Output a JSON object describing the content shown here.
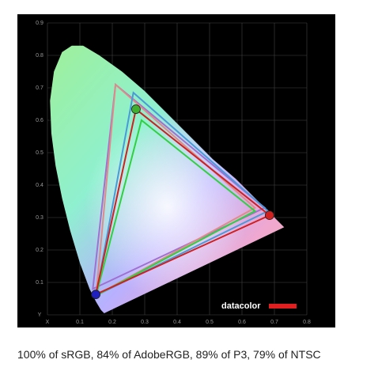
{
  "chart_data": {
    "type": "gamut",
    "caption": "100% of sRGB, 84% of AdobeRGB, 89% of P3, 79% of NTSC",
    "logo": "datacolor",
    "xlim": [
      0,
      0.8
    ],
    "ylim": [
      0,
      0.9
    ],
    "xticks": [
      {
        "value": 0,
        "label": "X"
      },
      0.1,
      0.2,
      0.3,
      0.4,
      0.5,
      0.6,
      0.7,
      0.8
    ],
    "yticks": [
      {
        "value": 0,
        "label": "Y"
      },
      0.1,
      0.2,
      0.3,
      0.4,
      0.5,
      0.6,
      0.7,
      0.8,
      0.9
    ],
    "grid": true,
    "locus": {
      "x": [
        0.175,
        0.165,
        0.15,
        0.13,
        0.1,
        0.07,
        0.045,
        0.025,
        0.012,
        0.008,
        0.02,
        0.045,
        0.075,
        0.11,
        0.16,
        0.23,
        0.3,
        0.37,
        0.44,
        0.51,
        0.58,
        0.64,
        0.73
      ],
      "y": [
        0.005,
        0.015,
        0.04,
        0.08,
        0.16,
        0.26,
        0.36,
        0.46,
        0.56,
        0.66,
        0.75,
        0.81,
        0.83,
        0.83,
        0.8,
        0.75,
        0.69,
        0.62,
        0.55,
        0.48,
        0.42,
        0.36,
        0.27
      ]
    },
    "series": [
      {
        "color": "#a070d0",
        "x": [
          0.67,
          0.21,
          0.14
        ],
        "y": [
          0.33,
          0.71,
          0.08
        ]
      },
      {
        "color": "#e08a8a",
        "x": [
          0.64,
          0.21,
          0.15
        ],
        "y": [
          0.33,
          0.71,
          0.06
        ]
      },
      {
        "color": "#4a9ad8",
        "x": [
          0.68,
          0.265,
          0.15
        ],
        "y": [
          0.32,
          0.685,
          0.06
        ]
      },
      {
        "color": "#30d040",
        "x": [
          0.64,
          0.29,
          0.15
        ],
        "y": [
          0.32,
          0.6,
          0.06
        ]
      },
      {
        "color": "#d02020",
        "x": [
          0.685,
          0.273,
          0.149
        ],
        "y": [
          0.307,
          0.634,
          0.063
        ],
        "marker_colors": [
          "#d02020",
          "#40b030",
          "#2020c0"
        ]
      }
    ]
  }
}
